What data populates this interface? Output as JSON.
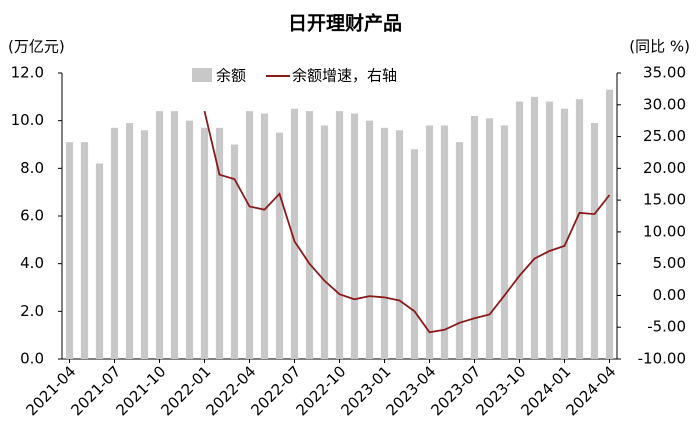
{
  "chart_data": {
    "type": "bar-line",
    "title": "日开理财产品",
    "y_label": "(万亿元)",
    "y2_label": "(同比 %)",
    "categories": [
      "2021-04",
      null,
      null,
      "2021-07",
      null,
      null,
      "2021-10",
      null,
      null,
      "2022-01",
      null,
      null,
      "2022-04",
      null,
      null,
      "2022-07",
      null,
      null,
      "2022-10",
      null,
      null,
      "2023-01",
      null,
      null,
      "2023-04",
      null,
      null,
      "2023-07",
      null,
      null,
      "2023-10",
      null,
      null,
      "2024-01",
      null,
      null,
      "2024-04"
    ],
    "series": [
      {
        "name": "余额",
        "kind": "bar",
        "color": "#c8c8c8",
        "values": [
          9.1,
          9.1,
          8.2,
          9.7,
          9.9,
          9.6,
          10.4,
          10.4,
          10.0,
          9.7,
          9.7,
          9.0,
          10.4,
          10.3,
          9.5,
          10.5,
          10.4,
          9.8,
          10.4,
          10.3,
          10.0,
          9.7,
          9.6,
          8.8,
          9.8,
          9.8,
          9.1,
          10.2,
          10.1,
          9.8,
          10.8,
          11.0,
          10.8,
          10.5,
          10.9,
          9.9,
          11.3
        ]
      },
      {
        "name": "余额增速，右轴",
        "kind": "line",
        "axis": "y2",
        "color": "#8b1a1a",
        "values": [
          null,
          null,
          null,
          null,
          null,
          null,
          null,
          null,
          null,
          29,
          19,
          18.3,
          14,
          13.5,
          16,
          8.5,
          5,
          2.3,
          0.2,
          -0.6,
          -0.1,
          -0.3,
          -0.8,
          -2.5,
          -5.8,
          -5.4,
          -4.3,
          -3.6,
          -3,
          0,
          3.1,
          5.8,
          7,
          7.8,
          13,
          12.8,
          15.8
        ]
      }
    ],
    "ylim": [
      0,
      12
    ],
    "yticks": [
      {
        "value": 0,
        "label": "0.0"
      },
      {
        "value": 2,
        "label": "2.0"
      },
      {
        "value": 4,
        "label": "4.0"
      },
      {
        "value": 6,
        "label": "6.0"
      },
      {
        "value": 8,
        "label": "8.0"
      },
      {
        "value": 10,
        "label": "10.0"
      },
      {
        "value": 12,
        "label": "12.0"
      }
    ],
    "y2lim": [
      -10,
      35
    ],
    "y2ticks": [
      {
        "value": -10,
        "label": "-10.00"
      },
      {
        "value": -5,
        "label": "-5.00"
      },
      {
        "value": 0,
        "label": "0.00"
      },
      {
        "value": 5,
        "label": "5.00"
      },
      {
        "value": 10,
        "label": "10.00"
      },
      {
        "value": 15,
        "label": "15.00"
      },
      {
        "value": 20,
        "label": "20.00"
      },
      {
        "value": 25,
        "label": "25.00"
      },
      {
        "value": 30,
        "label": "30.00"
      },
      {
        "value": 35,
        "label": "35.00"
      }
    ]
  }
}
